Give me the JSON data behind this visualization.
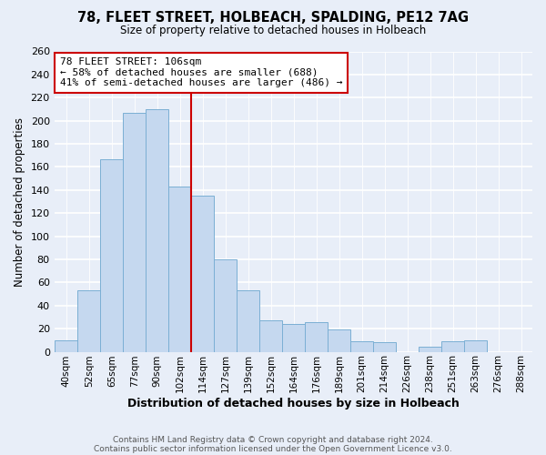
{
  "title1": "78, FLEET STREET, HOLBEACH, SPALDING, PE12 7AG",
  "title2": "Size of property relative to detached houses in Holbeach",
  "xlabel": "Distribution of detached houses by size in Holbeach",
  "ylabel": "Number of detached properties",
  "bin_labels": [
    "40sqm",
    "52sqm",
    "65sqm",
    "77sqm",
    "90sqm",
    "102sqm",
    "114sqm",
    "127sqm",
    "139sqm",
    "152sqm",
    "164sqm",
    "176sqm",
    "189sqm",
    "201sqm",
    "214sqm",
    "226sqm",
    "238sqm",
    "251sqm",
    "263sqm",
    "276sqm",
    "288sqm"
  ],
  "bar_heights": [
    10,
    53,
    167,
    207,
    210,
    143,
    135,
    80,
    53,
    27,
    24,
    26,
    19,
    9,
    8,
    0,
    4,
    9,
    10,
    0,
    0
  ],
  "bar_color": "#c5d8ef",
  "bar_edge_color": "#7bafd4",
  "vline_color": "#cc0000",
  "annotation_line1": "78 FLEET STREET: 106sqm",
  "annotation_line2": "← 58% of detached houses are smaller (688)",
  "annotation_line3": "41% of semi-detached houses are larger (486) →",
  "annotation_box_color": "white",
  "annotation_box_edge_color": "#cc0000",
  "footer1": "Contains HM Land Registry data © Crown copyright and database right 2024.",
  "footer2": "Contains public sector information licensed under the Open Government Licence v3.0.",
  "ylim": [
    0,
    260
  ],
  "yticks": [
    0,
    20,
    40,
    60,
    80,
    100,
    120,
    140,
    160,
    180,
    200,
    220,
    240,
    260
  ],
  "figsize": [
    6.0,
    5.0
  ],
  "dpi": 100,
  "bg_color": "#e8eef8",
  "plot_bg_color": "#e8eef8"
}
